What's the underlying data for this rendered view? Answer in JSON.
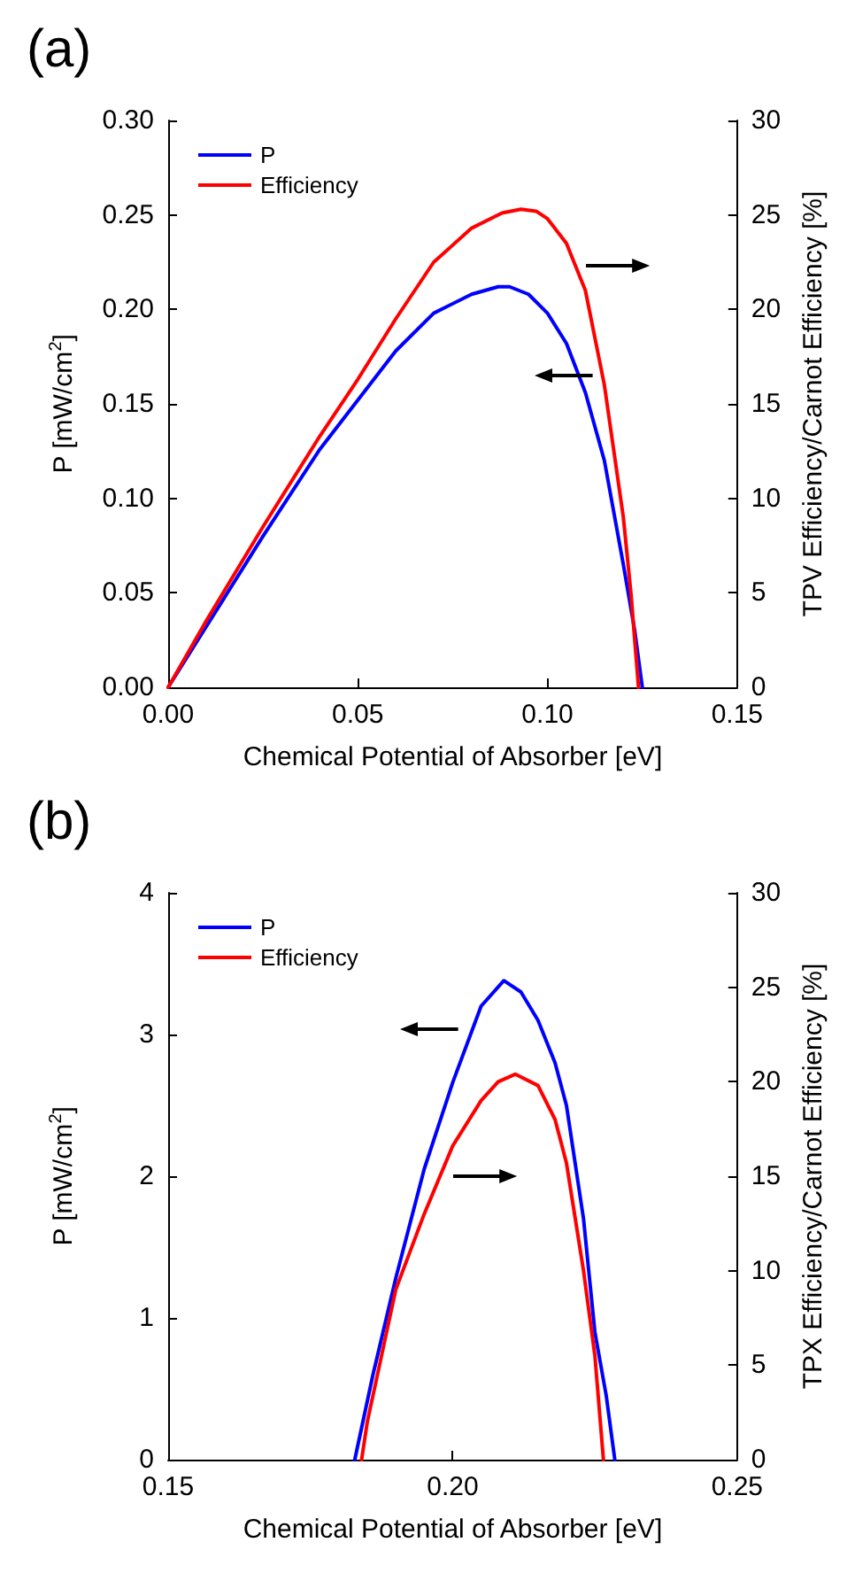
{
  "chart_data": [
    {
      "type": "line",
      "title": "(a)",
      "xlabel": "Chemical Potential of Absorber [eV]",
      "ylabel": "P [mW/cm$^{2}$]",
      "y2label": "TPV Efficiency/Carnot Efficiency [%]",
      "xlim": [
        0,
        0.15
      ],
      "xticks": [
        {
          "value": 0,
          "label": "0.00"
        },
        {
          "value": 0.05,
          "label": "0.05"
        },
        {
          "value": 0.1,
          "label": "0.10"
        },
        {
          "value": 0.15,
          "label": "0.15"
        }
      ],
      "ylim": [
        0,
        0.3
      ],
      "yticks": [
        {
          "value": 0,
          "label": "0.00"
        },
        {
          "value": 0.05,
          "label": "0.05"
        },
        {
          "value": 0.1,
          "label": "0.10"
        },
        {
          "value": 0.15,
          "label": "0.15"
        },
        {
          "value": 0.2,
          "label": "0.20"
        },
        {
          "value": 0.25,
          "label": "0.25"
        },
        {
          "value": 0.3,
          "label": "0.30"
        }
      ],
      "y2lim": [
        0,
        30
      ],
      "y2ticks": [
        0,
        5,
        10,
        15,
        20,
        25,
        30
      ],
      "legend": "top left",
      "grid": false,
      "marker": "none",
      "line_style": "solid",
      "series": [
        {
          "name": "P",
          "color": "#0000ff",
          "x": [
            0,
            0.01,
            0.025,
            0.04,
            0.05,
            0.06,
            0.07,
            0.08,
            0.087,
            0.09,
            0.095,
            0.1,
            0.105,
            0.11,
            0.115,
            0.12,
            0.123,
            0.125
          ],
          "values": [
            0,
            0.032,
            0.08,
            0.126,
            0.152,
            0.178,
            0.198,
            0.208,
            0.212,
            0.212,
            0.208,
            0.198,
            0.182,
            0.156,
            0.12,
            0.065,
            0.03,
            0
          ]
        },
        {
          "name": "Efficiency",
          "color": "#ff0000",
          "axis": "y2",
          "x": [
            0,
            0.01,
            0.025,
            0.04,
            0.05,
            0.06,
            0.07,
            0.08,
            0.088,
            0.093,
            0.097,
            0.1,
            0.105,
            0.11,
            0.115,
            0.12,
            0.122,
            0.124
          ],
          "values": [
            0,
            3.5,
            8.5,
            13.3,
            16.3,
            19.5,
            22.5,
            24.3,
            25.1,
            25.3,
            25.2,
            24.8,
            23.5,
            21,
            16,
            9,
            5,
            0
          ]
        }
      ]
    },
    {
      "type": "line",
      "title": "(b)",
      "xlabel": "Chemical Potential of Absorber [eV]",
      "ylabel": "P [mW/cm$^{2}$]",
      "y2label": "TPX Efficiency/Carnot Efficiency [%]",
      "xlim": [
        0.15,
        0.25
      ],
      "xticks": [
        {
          "value": 0.15,
          "label": "0.15"
        },
        {
          "value": 0.2,
          "label": "0.20"
        },
        {
          "value": 0.25,
          "label": "0.25"
        }
      ],
      "ylim": [
        0,
        4
      ],
      "yticks": [
        0,
        1,
        2,
        3,
        4
      ],
      "y2lim": [
        0,
        30
      ],
      "y2ticks": [
        0,
        5,
        10,
        15,
        20,
        25,
        30
      ],
      "legend": "top left",
      "grid": false,
      "marker": "none",
      "line_style": "solid",
      "series": [
        {
          "name": "P",
          "color": "#0000ff",
          "x": [
            0.1828,
            0.186,
            0.19,
            0.195,
            0.2,
            0.205,
            0.209,
            0.212,
            0.215,
            0.218,
            0.22,
            0.223,
            0.225,
            0.227,
            0.2285
          ],
          "values": [
            0,
            0.6,
            1.28,
            2.05,
            2.66,
            3.2,
            3.38,
            3.3,
            3.1,
            2.8,
            2.5,
            1.7,
            0.9,
            0.45,
            0
          ]
        },
        {
          "name": "Efficiency",
          "color": "#ff0000",
          "axis": "y2",
          "x": [
            0.184,
            0.185,
            0.19,
            0.195,
            0.2,
            0.205,
            0.208,
            0.211,
            0.215,
            0.218,
            0.22,
            0.223,
            0.225,
            0.2265
          ],
          "values": [
            0,
            2,
            9,
            13,
            16.6,
            19,
            20,
            20.4,
            19.8,
            18,
            15.7,
            10,
            5.5,
            0
          ]
        }
      ]
    }
  ]
}
